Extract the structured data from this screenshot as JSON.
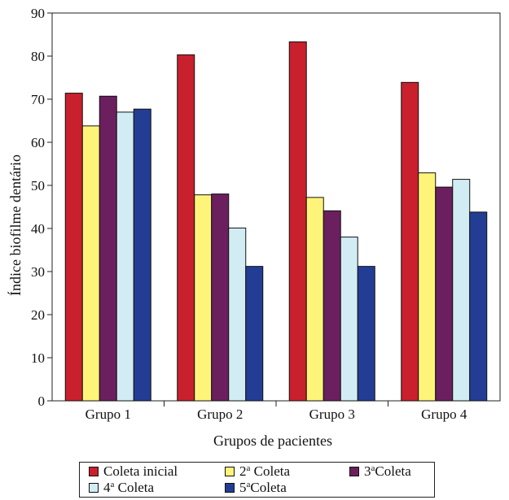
{
  "chart_data": {
    "type": "bar",
    "categories": [
      "Grupo 1",
      "Grupo 2",
      "Grupo 3",
      "Grupo 4"
    ],
    "series": [
      {
        "name": "Coleta inicial",
        "color": "#C8202C",
        "values": [
          71.4,
          80.3,
          83.3,
          73.9
        ]
      },
      {
        "name": "2ª Coleta",
        "color": "#FFF47A",
        "values": [
          63.8,
          47.8,
          47.2,
          52.9
        ]
      },
      {
        "name": "3ª Coleta",
        "color": "#6B1F5F",
        "values": [
          70.7,
          48.0,
          44.1,
          49.6
        ]
      },
      {
        "name": "4ª Coleta",
        "color": "#D2ECF4",
        "values": [
          67.0,
          40.1,
          38.0,
          51.4
        ]
      },
      {
        "name": "5ª Coleta",
        "color": "#233D94",
        "values": [
          67.7,
          31.2,
          31.2,
          43.8
        ]
      }
    ],
    "xlabel": "Grupos de pacientes",
    "ylabel": "Índice biofilme dentário",
    "ylim": [
      0,
      90
    ],
    "yticks": [
      0,
      10,
      20,
      30,
      40,
      50,
      60,
      70,
      80,
      90
    ],
    "grid": false,
    "legend_position": "bottom"
  },
  "legend": [
    {
      "base": "Coleta inicial",
      "sup": ""
    },
    {
      "base": "2",
      "sup": "a",
      "rest": " Coleta"
    },
    {
      "base": "3",
      "sup": "a",
      "rest": "Coleta"
    },
    {
      "base": "4",
      "sup": "a",
      "rest": " Coleta"
    },
    {
      "base": "5",
      "sup": "a",
      "rest": "Coleta"
    }
  ]
}
